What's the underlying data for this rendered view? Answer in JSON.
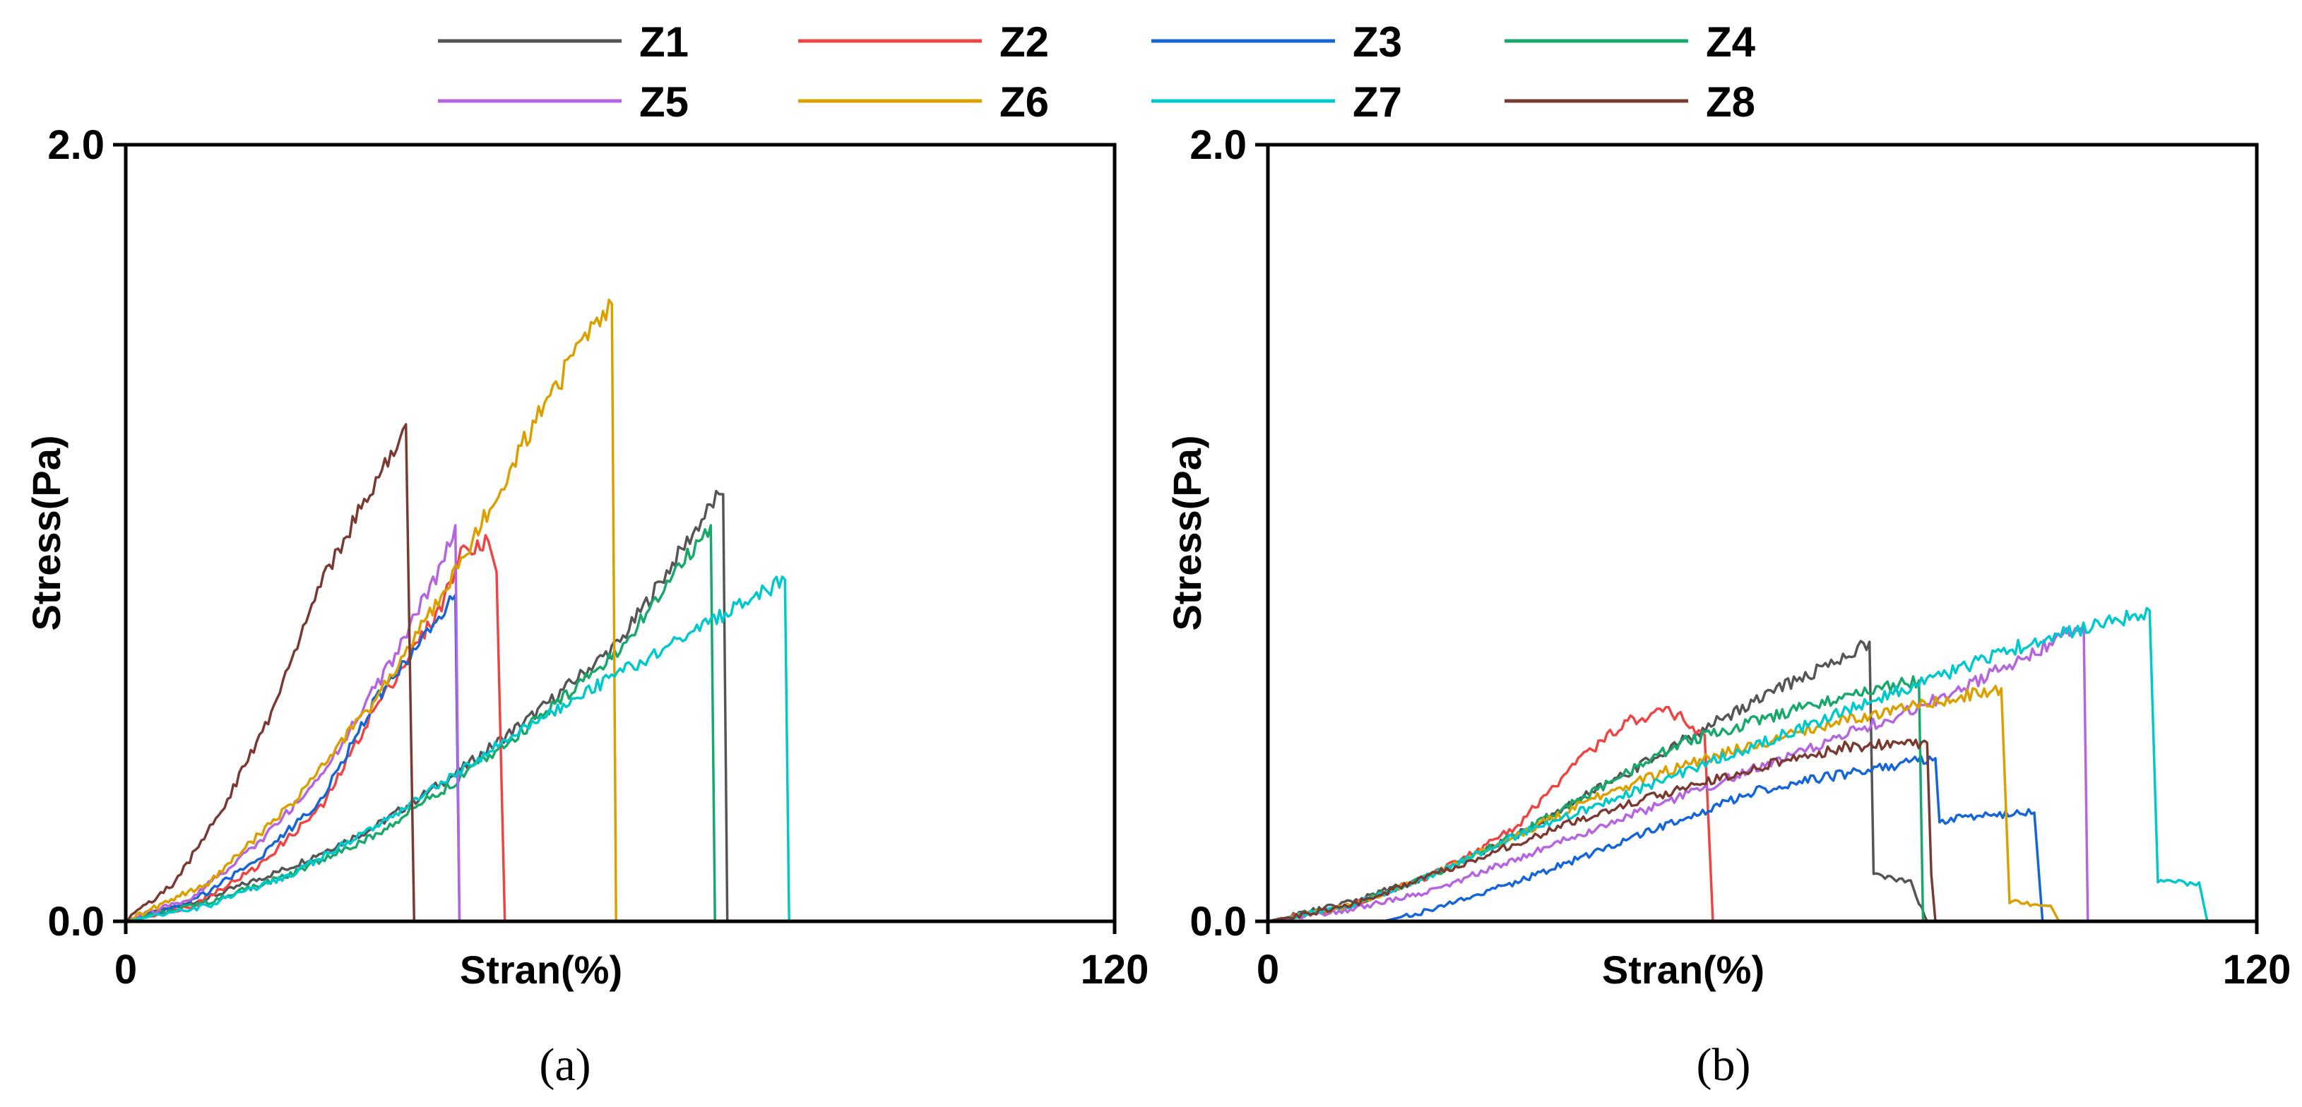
{
  "chart_data": [
    {
      "type": "line",
      "panel_label": "(a)",
      "xlabel": "Stran(%)",
      "ylabel": "Stress(Pa)",
      "xlim": [
        0,
        120
      ],
      "ylim": [
        0,
        2.0
      ],
      "x_tick_labels": [
        "0",
        "120"
      ],
      "y_tick_labels": [
        "0.0",
        "2.0"
      ],
      "series": [
        {
          "name": "Z1",
          "color": "#555555",
          "points": [
            [
              0,
              0
            ],
            [
              10,
              0.06
            ],
            [
              20,
              0.14
            ],
            [
              30,
              0.24
            ],
            [
              40,
              0.38
            ],
            [
              50,
              0.54
            ],
            [
              60,
              0.72
            ],
            [
              72,
              1.1
            ],
            [
              72.5,
              1.1
            ],
            [
              73,
              0
            ]
          ]
        },
        {
          "name": "Z2",
          "color": "#ef4444",
          "points": [
            [
              0,
              0
            ],
            [
              8,
              0.04
            ],
            [
              16,
              0.14
            ],
            [
              24,
              0.3
            ],
            [
              30,
              0.54
            ],
            [
              38,
              0.8
            ],
            [
              41,
              0.96
            ],
            [
              44,
              0.98
            ],
            [
              45,
              0.9
            ],
            [
              46,
              0
            ]
          ]
        },
        {
          "name": "Z3",
          "color": "#1565d8",
          "points": [
            [
              0,
              0
            ],
            [
              8,
              0.05
            ],
            [
              16,
              0.16
            ],
            [
              24,
              0.32
            ],
            [
              30,
              0.56
            ],
            [
              38,
              0.78
            ],
            [
              40,
              0.84
            ],
            [
              40.5,
              0
            ]
          ]
        },
        {
          "name": "Z4",
          "color": "#18a86b",
          "points": [
            [
              0,
              0
            ],
            [
              10,
              0.05
            ],
            [
              20,
              0.12
            ],
            [
              30,
              0.22
            ],
            [
              40,
              0.36
            ],
            [
              50,
              0.52
            ],
            [
              60,
              0.7
            ],
            [
              71,
              1.02
            ],
            [
              71.5,
              0
            ]
          ]
        },
        {
          "name": "Z5",
          "color": "#b565e0",
          "points": [
            [
              0,
              0
            ],
            [
              8,
              0.06
            ],
            [
              16,
              0.2
            ],
            [
              24,
              0.38
            ],
            [
              32,
              0.66
            ],
            [
              38,
              0.9
            ],
            [
              40,
              1.02
            ],
            [
              40.5,
              0
            ]
          ]
        },
        {
          "name": "Z6",
          "color": "#dba000",
          "points": [
            [
              0,
              0
            ],
            [
              10,
              0.1
            ],
            [
              20,
              0.3
            ],
            [
              30,
              0.56
            ],
            [
              40,
              0.9
            ],
            [
              48,
              1.22
            ],
            [
              55,
              1.48
            ],
            [
              59,
              1.59
            ],
            [
              59.5,
              0
            ]
          ]
        },
        {
          "name": "Z7",
          "color": "#00c8cc",
          "points": [
            [
              0,
              0
            ],
            [
              10,
              0.04
            ],
            [
              20,
              0.12
            ],
            [
              30,
              0.24
            ],
            [
              40,
              0.38
            ],
            [
              50,
              0.52
            ],
            [
              60,
              0.64
            ],
            [
              70,
              0.76
            ],
            [
              80,
              0.88
            ],
            [
              80.5,
              0
            ]
          ]
        },
        {
          "name": "Z8",
          "color": "#7a3a32",
          "points": [
            [
              0,
              0
            ],
            [
              6,
              0.1
            ],
            [
              12,
              0.3
            ],
            [
              18,
              0.55
            ],
            [
              24,
              0.88
            ],
            [
              30,
              1.12
            ],
            [
              34,
              1.28
            ],
            [
              35,
              0
            ]
          ]
        }
      ]
    },
    {
      "type": "line",
      "panel_label": "(b)",
      "xlabel": "Stran(%)",
      "ylabel": "Stress(Pa)",
      "xlim": [
        0,
        120
      ],
      "ylim": [
        0,
        2.0
      ],
      "x_tick_labels": [
        "0",
        "120"
      ],
      "y_tick_labels": [
        "0.0",
        "2.0"
      ],
      "series": [
        {
          "name": "Z1",
          "color": "#555555",
          "points": [
            [
              0,
              0
            ],
            [
              10,
              0.05
            ],
            [
              20,
              0.12
            ],
            [
              30,
              0.22
            ],
            [
              40,
              0.34
            ],
            [
              50,
              0.46
            ],
            [
              60,
              0.58
            ],
            [
              68,
              0.66
            ],
            [
              73,
              0.72
            ],
            [
              73.5,
              0.12
            ],
            [
              78,
              0.1
            ],
            [
              80,
              0
            ]
          ]
        },
        {
          "name": "Z2",
          "color": "#ef4444",
          "points": [
            [
              0,
              0
            ],
            [
              10,
              0.04
            ],
            [
              20,
              0.12
            ],
            [
              30,
              0.24
            ],
            [
              38,
              0.42
            ],
            [
              44,
              0.52
            ],
            [
              49,
              0.54
            ],
            [
              53,
              0.48
            ],
            [
              54,
              0
            ]
          ]
        },
        {
          "name": "Z3",
          "color": "#1565d8",
          "points": [
            [
              0,
              0
            ],
            [
              14,
              0
            ],
            [
              20,
              0.03
            ],
            [
              30,
              0.1
            ],
            [
              40,
              0.18
            ],
            [
              50,
              0.26
            ],
            [
              60,
              0.34
            ],
            [
              70,
              0.38
            ],
            [
              81,
              0.42
            ],
            [
              81.5,
              0.26
            ],
            [
              93,
              0.28
            ],
            [
              94,
              0
            ]
          ]
        },
        {
          "name": "Z4",
          "color": "#18a86b",
          "points": [
            [
              0,
              0
            ],
            [
              10,
              0.04
            ],
            [
              20,
              0.12
            ],
            [
              30,
              0.22
            ],
            [
              40,
              0.34
            ],
            [
              50,
              0.46
            ],
            [
              60,
              0.52
            ],
            [
              70,
              0.58
            ],
            [
              79,
              0.62
            ],
            [
              79.5,
              0
            ]
          ]
        },
        {
          "name": "Z5",
          "color": "#b565e0",
          "points": [
            [
              0,
              0
            ],
            [
              10,
              0.03
            ],
            [
              20,
              0.08
            ],
            [
              30,
              0.16
            ],
            [
              40,
              0.24
            ],
            [
              50,
              0.32
            ],
            [
              60,
              0.4
            ],
            [
              70,
              0.48
            ],
            [
              80,
              0.56
            ],
            [
              90,
              0.66
            ],
            [
              99,
              0.76
            ],
            [
              99.5,
              0
            ]
          ]
        },
        {
          "name": "Z6",
          "color": "#dba000",
          "points": [
            [
              0,
              0
            ],
            [
              10,
              0.04
            ],
            [
              20,
              0.12
            ],
            [
              30,
              0.22
            ],
            [
              40,
              0.32
            ],
            [
              50,
              0.4
            ],
            [
              60,
              0.46
            ],
            [
              70,
              0.52
            ],
            [
              80,
              0.56
            ],
            [
              89,
              0.6
            ],
            [
              90,
              0.05
            ],
            [
              95,
              0.04
            ],
            [
              96,
              0
            ]
          ]
        },
        {
          "name": "Z7",
          "color": "#00c8cc",
          "points": [
            [
              0,
              0
            ],
            [
              10,
              0.04
            ],
            [
              20,
              0.12
            ],
            [
              30,
              0.22
            ],
            [
              40,
              0.3
            ],
            [
              50,
              0.38
            ],
            [
              60,
              0.46
            ],
            [
              70,
              0.54
            ],
            [
              80,
              0.62
            ],
            [
              90,
              0.7
            ],
            [
              100,
              0.76
            ],
            [
              107,
              0.8
            ],
            [
              108,
              0.1
            ],
            [
              113,
              0.1
            ],
            [
              114,
              0
            ]
          ]
        },
        {
          "name": "Z8",
          "color": "#7a3a32",
          "points": [
            [
              0,
              0
            ],
            [
              10,
              0.04
            ],
            [
              20,
              0.12
            ],
            [
              30,
              0.2
            ],
            [
              40,
              0.28
            ],
            [
              50,
              0.34
            ],
            [
              60,
              0.4
            ],
            [
              70,
              0.45
            ],
            [
              80,
              0.46
            ],
            [
              80.5,
              0.12
            ],
            [
              81,
              0
            ]
          ]
        }
      ]
    }
  ]
}
